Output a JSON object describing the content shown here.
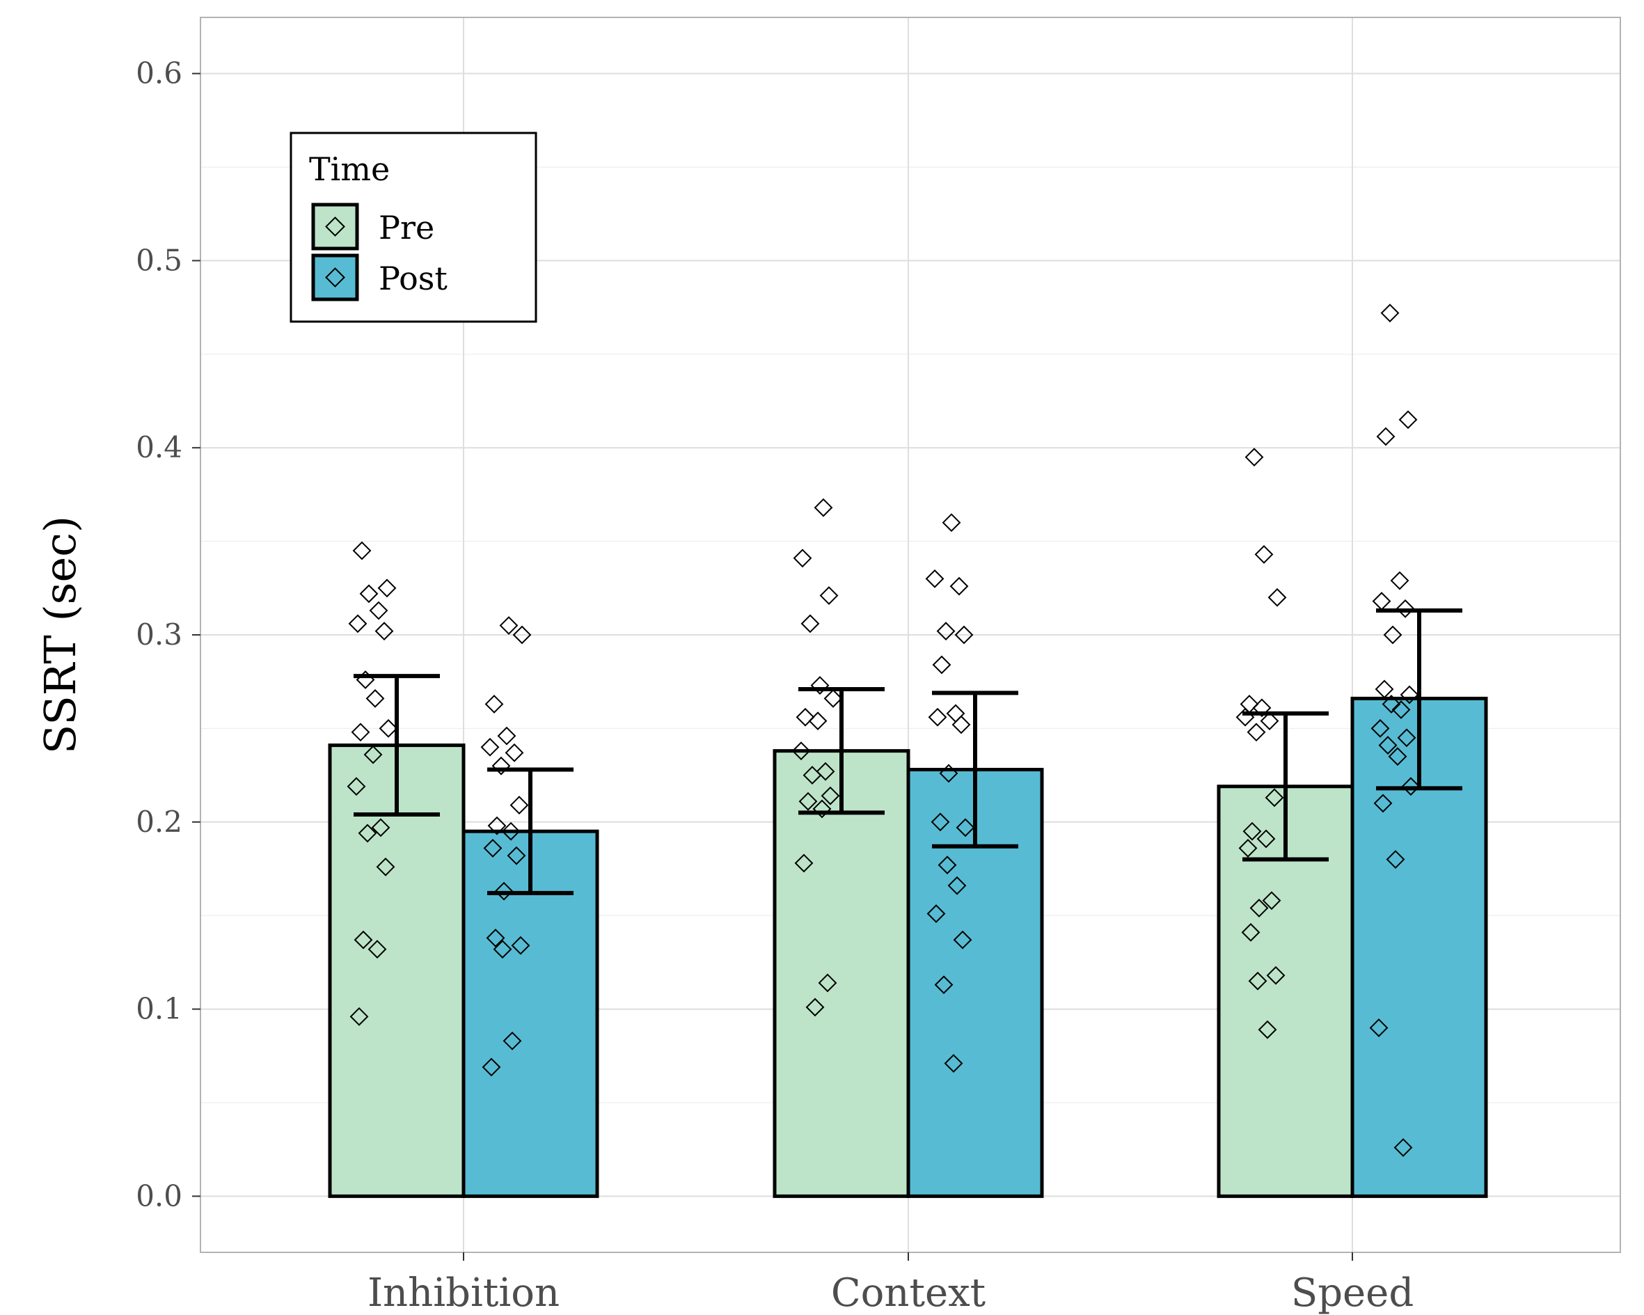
{
  "chart_data": {
    "type": "bar",
    "title": "",
    "xlabel": "",
    "ylabel": "SSRT (sec)",
    "ylim": [
      -0.03,
      0.63
    ],
    "yticks": [
      "0.0",
      "0.1",
      "0.2",
      "0.3",
      "0.4",
      "0.5",
      "0.6"
    ],
    "grid": true,
    "legend": {
      "title": "Time",
      "placement": "top-left",
      "entries": [
        "Pre",
        "Post"
      ]
    },
    "categories": [
      "Inhibition",
      "Context",
      "Speed"
    ],
    "colors": {
      "Pre": "#bde4c9",
      "Post": "#57bcd3"
    },
    "series": [
      {
        "name": "Pre",
        "values": [
          0.241,
          0.238,
          0.219
        ],
        "error_low": [
          0.204,
          0.205,
          0.18
        ],
        "error_high": [
          0.278,
          0.271,
          0.258
        ],
        "points": [
          [
            0.345,
            0.325,
            0.322,
            0.313,
            0.306,
            0.302,
            0.276,
            0.266,
            0.25,
            0.248,
            0.236,
            0.219,
            0.197,
            0.194,
            0.176,
            0.137,
            0.132,
            0.096
          ],
          [
            0.368,
            0.341,
            0.321,
            0.306,
            0.273,
            0.266,
            0.256,
            0.254,
            0.238,
            0.227,
            0.225,
            0.214,
            0.211,
            0.207,
            0.178,
            0.114,
            0.101
          ],
          [
            0.395,
            0.343,
            0.32,
            0.263,
            0.261,
            0.256,
            0.254,
            0.248,
            0.213,
            0.195,
            0.191,
            0.186,
            0.158,
            0.154,
            0.141,
            0.118,
            0.115,
            0.089
          ]
        ]
      },
      {
        "name": "Post",
        "values": [
          0.195,
          0.228,
          0.266
        ],
        "error_low": [
          0.162,
          0.187,
          0.218
        ],
        "error_high": [
          0.228,
          0.269,
          0.313
        ],
        "points": [
          [
            0.305,
            0.3,
            0.263,
            0.246,
            0.24,
            0.237,
            0.23,
            0.209,
            0.198,
            0.195,
            0.186,
            0.182,
            0.163,
            0.138,
            0.134,
            0.132,
            0.083,
            0.069
          ],
          [
            0.36,
            0.33,
            0.326,
            0.302,
            0.3,
            0.284,
            0.258,
            0.256,
            0.252,
            0.226,
            0.2,
            0.197,
            0.177,
            0.166,
            0.151,
            0.137,
            0.113,
            0.071
          ],
          [
            0.472,
            0.415,
            0.406,
            0.329,
            0.318,
            0.314,
            0.3,
            0.271,
            0.268,
            0.263,
            0.26,
            0.25,
            0.245,
            0.241,
            0.235,
            0.219,
            0.21,
            0.18,
            0.09,
            0.026
          ]
        ]
      }
    ]
  }
}
